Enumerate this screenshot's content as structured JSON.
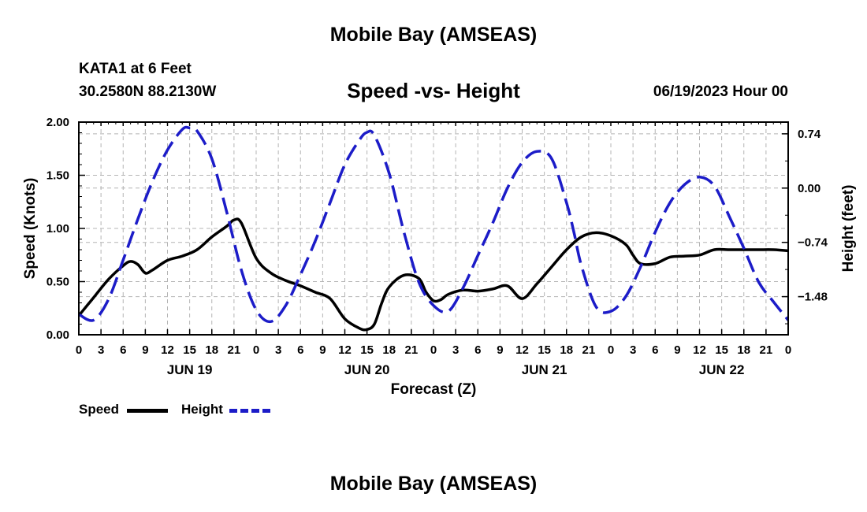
{
  "header": {
    "title": "Mobile Bay (AMSEAS)",
    "station": "KATA1 at 6 Feet",
    "coordinates": "30.2580N  88.2130W",
    "subtitle": "Speed -vs- Height",
    "datetime": "06/19/2023 Hour 00"
  },
  "footer": {
    "title": "Mobile Bay (AMSEAS)"
  },
  "legend": {
    "speed_label": "Speed",
    "height_label": "Height",
    "speed_color": "#000000",
    "height_color": "#1c1cc8"
  },
  "chart_data": {
    "type": "line",
    "title": "Speed -vs- Height",
    "xlabel": "Forecast (Z)",
    "ylabel": "Speed (Knots)",
    "y2label": "Height (feet)",
    "xlim": [
      0,
      96
    ],
    "ylim": [
      0,
      2.0
    ],
    "y2lim": [
      -2.0,
      0.9
    ],
    "x_tick_labels": [
      "0",
      "3",
      "6",
      "9",
      "12",
      "15",
      "18",
      "21",
      "0",
      "3",
      "6",
      "9",
      "12",
      "15",
      "18",
      "21",
      "0",
      "3",
      "6",
      "9",
      "12",
      "15",
      "18",
      "21",
      "0",
      "3",
      "6",
      "9",
      "12",
      "15",
      "18",
      "21",
      "0"
    ],
    "day_labels": [
      {
        "label": "JUN 19",
        "hour": 15
      },
      {
        "label": "JUN 20",
        "hour": 39
      },
      {
        "label": "JUN 21",
        "hour": 63
      },
      {
        "label": "JUN 22",
        "hour": 87
      }
    ],
    "y_ticks": [
      {
        "value": 0.0,
        "label": "0.00"
      },
      {
        "value": 0.5,
        "label": "0.50"
      },
      {
        "value": 1.0,
        "label": "1.00"
      },
      {
        "value": 1.5,
        "label": "1.50"
      },
      {
        "value": 2.0,
        "label": "2.00"
      }
    ],
    "y2_ticks": [
      {
        "value": 0.74,
        "label": "0.74"
      },
      {
        "value": 0.0,
        "label": "0.00"
      },
      {
        "value": -0.74,
        "label": "−0.74"
      },
      {
        "value": -1.48,
        "label": "−1.48"
      }
    ],
    "grid": true,
    "series": [
      {
        "name": "Speed",
        "axis": "left",
        "style": "solid",
        "color": "#000000",
        "x": [
          0,
          2,
          4,
          6,
          7,
          8,
          9,
          10,
          12,
          14,
          16,
          18,
          20,
          21,
          22,
          24,
          26,
          28,
          30,
          32,
          34,
          36,
          38,
          39,
          40,
          41,
          42,
          44,
          46,
          47,
          48,
          49,
          50,
          52,
          54,
          56,
          58,
          60,
          62,
          64,
          66,
          68,
          70,
          72,
          74,
          75,
          76,
          78,
          80,
          82,
          84,
          86,
          88,
          90,
          92,
          94,
          96
        ],
        "y": [
          0.18,
          0.35,
          0.52,
          0.65,
          0.69,
          0.66,
          0.58,
          0.61,
          0.7,
          0.74,
          0.8,
          0.92,
          1.02,
          1.08,
          1.05,
          0.72,
          0.58,
          0.51,
          0.46,
          0.4,
          0.34,
          0.15,
          0.06,
          0.05,
          0.1,
          0.3,
          0.45,
          0.56,
          0.53,
          0.4,
          0.32,
          0.33,
          0.38,
          0.42,
          0.41,
          0.43,
          0.46,
          0.34,
          0.48,
          0.64,
          0.8,
          0.92,
          0.96,
          0.93,
          0.85,
          0.75,
          0.67,
          0.67,
          0.73,
          0.74,
          0.75,
          0.8,
          0.8,
          0.8,
          0.8,
          0.8,
          0.79
        ]
      },
      {
        "name": "Height",
        "axis": "right",
        "style": "dashed",
        "color": "#1c1cc8",
        "x": [
          0,
          2,
          4,
          6,
          8,
          10,
          12,
          14,
          15,
          16,
          18,
          20,
          22,
          24,
          26,
          28,
          30,
          32,
          34,
          36,
          38,
          39,
          40,
          42,
          44,
          46,
          48,
          50,
          52,
          54,
          56,
          58,
          60,
          62,
          64,
          66,
          67,
          68,
          70,
          72,
          74,
          76,
          78,
          80,
          82,
          84,
          86,
          88,
          90,
          92,
          94,
          96
        ],
        "y": [
          -1.72,
          -1.8,
          -1.52,
          -0.98,
          -0.42,
          0.1,
          0.52,
          0.8,
          0.82,
          0.78,
          0.4,
          -0.32,
          -1.12,
          -1.66,
          -1.82,
          -1.6,
          -1.18,
          -0.72,
          -0.2,
          0.32,
          0.66,
          0.76,
          0.72,
          0.2,
          -0.6,
          -1.28,
          -1.6,
          -1.68,
          -1.36,
          -0.92,
          -0.48,
          0.0,
          0.35,
          0.5,
          0.4,
          -0.2,
          -0.6,
          -1.05,
          -1.62,
          -1.68,
          -1.48,
          -1.08,
          -0.6,
          -0.2,
          0.05,
          0.15,
          0.03,
          -0.38,
          -0.82,
          -1.28,
          -1.55,
          -1.8
        ]
      }
    ]
  }
}
